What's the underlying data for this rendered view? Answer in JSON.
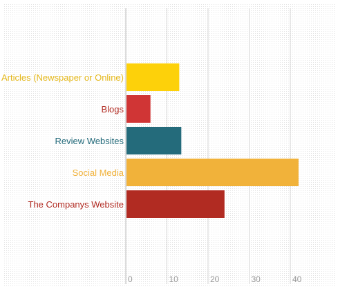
{
  "chart_data": {
    "type": "bar",
    "orientation": "horizontal",
    "title": "",
    "xlabel": "",
    "ylabel": "",
    "categories": [
      "Articles (Newspaper or Online)",
      "Blogs",
      "Review Websites",
      "Social Media",
      "The Companys Website"
    ],
    "values": [
      13,
      6,
      13.5,
      42,
      24
    ],
    "colors": [
      "#FDD10A",
      "#D03535",
      "#246B7B",
      "#F1B23A",
      "#B12B22"
    ],
    "label_colors": [
      "#E5B81A",
      "#B12B22",
      "#246B7B",
      "#F1B23A",
      "#B12B22"
    ],
    "xlim": [
      0,
      45
    ],
    "xticks": [
      0,
      10,
      20,
      30,
      40
    ],
    "grid": true,
    "legend": "none"
  }
}
